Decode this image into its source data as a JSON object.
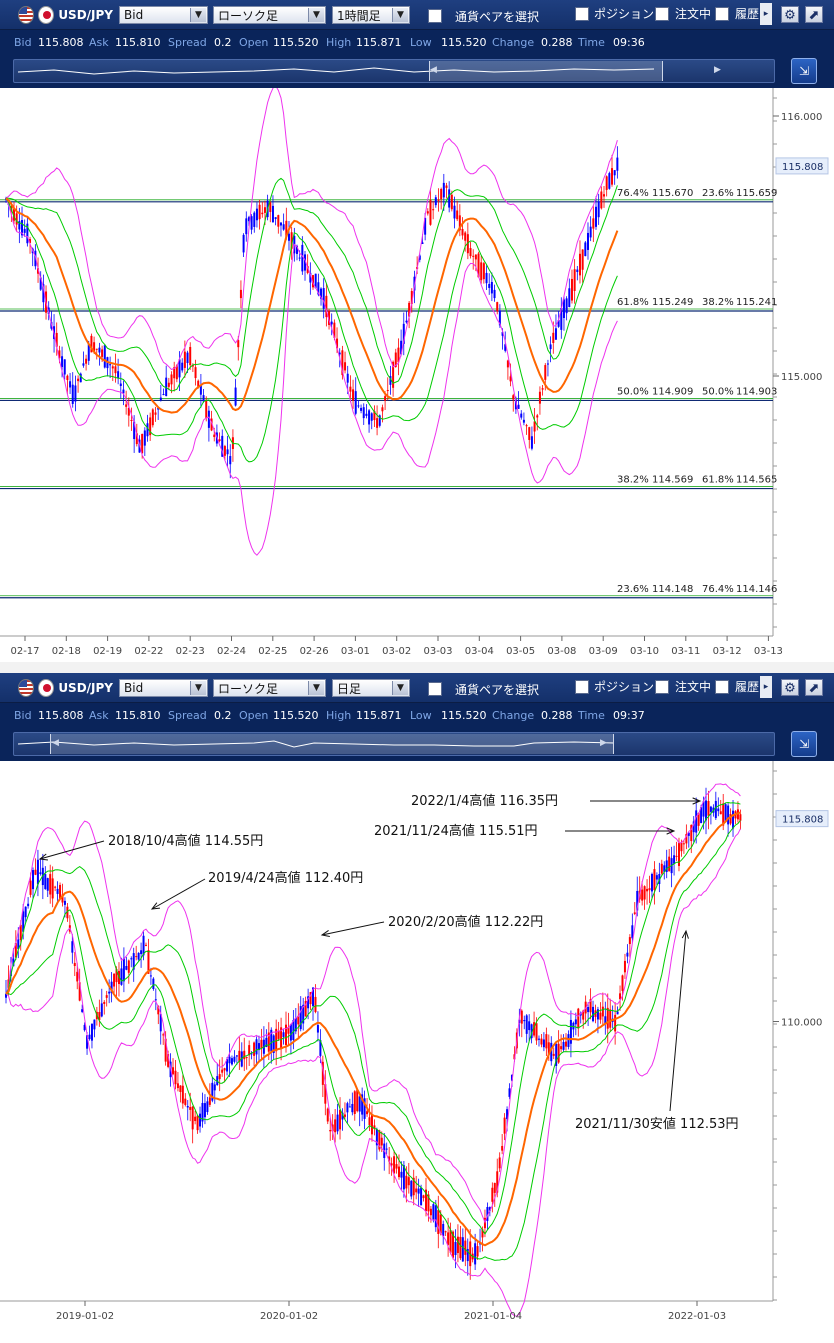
{
  "panels": [
    {
      "toolbar": {
        "pair": "USD/JPY",
        "price_type": "Bid",
        "chart_type": "ローソク足",
        "timeframe": "1時間足",
        "pair_select": "通貨ペアを選択",
        "positions": "ポジション",
        "orders": "注文中",
        "history": "履歴"
      },
      "info": {
        "bid_label": "Bid",
        "bid": "115.808",
        "ask_label": "Ask",
        "ask": "115.810",
        "spread_label": "Spread",
        "spread": "0.2",
        "open_label": "Open",
        "open": "115.520",
        "high_label": "High",
        "high": "115.871",
        "low_label": "Low",
        "low": "115.520",
        "change_label": "Change",
        "change": "0.288",
        "time_label": "Time",
        "time": "09:36"
      },
      "chart_data": {
        "type": "candlestick",
        "y_axis": {
          "min": 114.0,
          "max": 116.1,
          "ticks": [
            116.0,
            115.0
          ],
          "tick_labels": [
            "116.000",
            "115.000"
          ],
          "price_tag": "115.808"
        },
        "x_tick_labels": [
          "02-17",
          "02-18",
          "02-19",
          "02-22",
          "02-23",
          "02-24",
          "02-25",
          "02-26",
          "03-01",
          "03-02",
          "03-03",
          "03-04",
          "03-05",
          "03-08",
          "03-09",
          "03-10",
          "03-11",
          "03-12",
          "03-13"
        ],
        "fibonacci": [
          {
            "price": 115.67,
            "left": "76.4%",
            "left_price": "115.670",
            "right": "23.6%",
            "right_price": "115.659"
          },
          {
            "price": 115.25,
            "left": "61.8%",
            "left_price": "115.249",
            "right": "38.2%",
            "right_price": "115.241"
          },
          {
            "price": 114.906,
            "left": "50.0%",
            "left_price": "114.909",
            "right": "50.0%",
            "right_price": "114.903"
          },
          {
            "price": 114.567,
            "left": "38.2%",
            "left_price": "114.569",
            "right": "61.8%",
            "right_price": "114.565"
          },
          {
            "price": 114.147,
            "left": "23.6%",
            "left_price": "114.148",
            "right": "76.4%",
            "right_price": "114.146"
          }
        ],
        "path": [
          [
            0,
            115.68
          ],
          [
            0.04,
            115.52
          ],
          [
            0.08,
            115.15
          ],
          [
            0.11,
            114.92
          ],
          [
            0.14,
            115.13
          ],
          [
            0.18,
            115.02
          ],
          [
            0.22,
            114.72
          ],
          [
            0.26,
            114.95
          ],
          [
            0.3,
            115.08
          ],
          [
            0.34,
            114.78
          ],
          [
            0.37,
            114.68
          ],
          [
            0.39,
            115.58
          ],
          [
            0.43,
            115.65
          ],
          [
            0.46,
            115.55
          ],
          [
            0.52,
            115.3
          ],
          [
            0.57,
            114.9
          ],
          [
            0.61,
            114.82
          ],
          [
            0.65,
            115.15
          ],
          [
            0.69,
            115.62
          ],
          [
            0.72,
            115.72
          ],
          [
            0.76,
            115.48
          ],
          [
            0.8,
            115.32
          ],
          [
            0.83,
            114.92
          ],
          [
            0.86,
            114.75
          ],
          [
            0.89,
            115.1
          ],
          [
            0.92,
            115.3
          ],
          [
            0.95,
            115.5
          ],
          [
            0.98,
            115.72
          ],
          [
            1.0,
            115.81
          ]
        ]
      },
      "annotations": []
    },
    {
      "toolbar": {
        "pair": "USD/JPY",
        "price_type": "Bid",
        "chart_type": "ローソク足",
        "timeframe": "日足",
        "pair_select": "通貨ペアを選択",
        "positions": "ポジション",
        "orders": "注文中",
        "history": "履歴"
      },
      "info": {
        "bid_label": "Bid",
        "bid": "115.808",
        "ask_label": "Ask",
        "ask": "115.810",
        "spread_label": "Spread",
        "spread": "0.2",
        "open_label": "Open",
        "open": "115.520",
        "high_label": "High",
        "high": "115.871",
        "low_label": "Low",
        "low": "115.520",
        "change_label": "Change",
        "change": "0.288",
        "time_label": "Time",
        "time": "09:37"
      },
      "chart_data": {
        "type": "candlestick",
        "y_axis": {
          "min": 102.0,
          "max": 117.4,
          "ticks": [
            110.0
          ],
          "tick_labels": [
            "110.000"
          ],
          "price_tag": "115.808"
        },
        "x_tick_labels": [
          "2019-01-02",
          "2020-01-02",
          "2021-01-04",
          "2022-01-03"
        ],
        "fibonacci": [],
        "path": [
          [
            0,
            110.8
          ],
          [
            0.04,
            114.3
          ],
          [
            0.08,
            113.5
          ],
          [
            0.11,
            109.5
          ],
          [
            0.15,
            111.2
          ],
          [
            0.19,
            112.2
          ],
          [
            0.22,
            108.9
          ],
          [
            0.26,
            107.0
          ],
          [
            0.3,
            108.8
          ],
          [
            0.35,
            109.3
          ],
          [
            0.39,
            109.7
          ],
          [
            0.42,
            110.8
          ],
          [
            0.44,
            106.9
          ],
          [
            0.48,
            107.8
          ],
          [
            0.53,
            105.8
          ],
          [
            0.57,
            104.9
          ],
          [
            0.61,
            103.6
          ],
          [
            0.64,
            103.3
          ],
          [
            0.67,
            105.5
          ],
          [
            0.7,
            110.2
          ],
          [
            0.75,
            109.0
          ],
          [
            0.79,
            110.4
          ],
          [
            0.83,
            110.0
          ],
          [
            0.86,
            113.5
          ],
          [
            0.89,
            114.2
          ],
          [
            0.92,
            114.9
          ],
          [
            0.95,
            116.1
          ],
          [
            1.0,
            115.8
          ]
        ]
      },
      "annotations": [
        "2022/1/4高値 116.35円",
        "2021/11/24高値 115.51円",
        "2018/10/4高値 114.55円",
        "2019/4/24高値 112.40円",
        "2020/2/20高値 112.22円",
        "2021/11/30安値 112.53円"
      ]
    }
  ],
  "colors": {
    "toolbar": "#1b376f",
    "info_bg": "#0a245a",
    "up": "#0000ff",
    "down": "#ff0000",
    "ma": "#ff6600",
    "inner_band": "#00cc00",
    "outer_band": "#ee33ee",
    "fib": "#0f2a74"
  },
  "icons": [
    "us-flag-icon",
    "jp-flag-icon",
    "gear-icon",
    "expand-icon",
    "zoom-icon",
    "chevron-down-icon"
  ]
}
